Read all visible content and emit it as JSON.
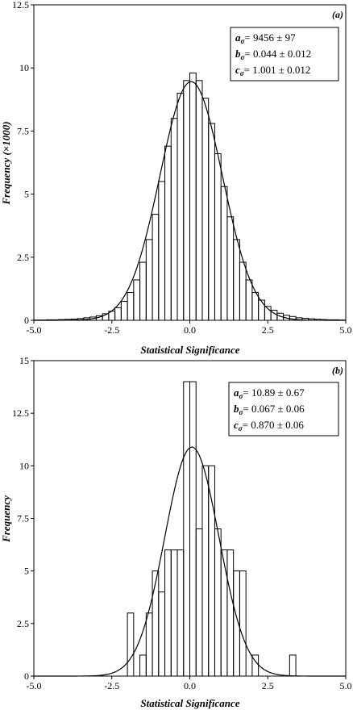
{
  "chart_data": [
    {
      "type": "bar",
      "panel_label": "(a)",
      "xlabel": "Statistical Significance",
      "ylabel": "Frequency (×1000)",
      "xlim": [
        -5.0,
        5.0
      ],
      "ylim": [
        0,
        12.5
      ],
      "xticks": [
        "-5.0",
        "-2.5",
        "0.0",
        "2.5",
        "5.0"
      ],
      "yticks": [
        "0",
        "2.5",
        "5",
        "7.5",
        "10",
        "12.5"
      ],
      "bin_width": 0.2,
      "bin_starts": [
        -5.0,
        -4.8,
        -4.6,
        -4.4,
        -4.2,
        -4.0,
        -3.8,
        -3.6,
        -3.4,
        -3.2,
        -3.0,
        -2.8,
        -2.6,
        -2.4,
        -2.2,
        -2.0,
        -1.8,
        -1.6,
        -1.4,
        -1.2,
        -1.0,
        -0.8,
        -0.6,
        -0.4,
        -0.2,
        0.0,
        0.2,
        0.4,
        0.6,
        0.8,
        1.0,
        1.2,
        1.4,
        1.6,
        1.8,
        2.0,
        2.2,
        2.4,
        2.6,
        2.8,
        3.0,
        3.2,
        3.4,
        3.6,
        3.8,
        4.0,
        4.2,
        4.4,
        4.6,
        4.8
      ],
      "values": [
        0.01,
        0.01,
        0.02,
        0.02,
        0.03,
        0.04,
        0.05,
        0.07,
        0.1,
        0.13,
        0.18,
        0.26,
        0.36,
        0.5,
        0.75,
        1.1,
        1.6,
        2.3,
        3.2,
        4.2,
        5.5,
        6.9,
        8.0,
        9.0,
        9.5,
        9.8,
        9.5,
        8.8,
        7.8,
        6.6,
        5.3,
        4.1,
        3.2,
        2.3,
        1.6,
        1.1,
        0.8,
        0.55,
        0.4,
        0.28,
        0.2,
        0.15,
        0.1,
        0.08,
        0.06,
        0.04,
        0.03,
        0.02,
        0.02,
        0.01
      ],
      "fit": {
        "amplitude": 9.456,
        "mean": 0.044,
        "sigma": 1.001
      },
      "params": [
        {
          "symbol": "a",
          "sub": "σ",
          "value": "= 9456 ± 97"
        },
        {
          "symbol": "b",
          "sub": "σ",
          "value": "= 0.044 ± 0.012"
        },
        {
          "symbol": "c",
          "sub": "σ",
          "value": "= 1.001 ± 0.012"
        }
      ]
    },
    {
      "type": "bar",
      "panel_label": "(b)",
      "xlabel": "Statistical Significance",
      "ylabel": "Frequency",
      "xlim": [
        -5.0,
        5.0
      ],
      "ylim": [
        0,
        15
      ],
      "xticks": [
        "-5.0",
        "-2.5",
        "0.0",
        "2.5",
        "5.0"
      ],
      "yticks": [
        "0",
        "2.5",
        "5",
        "7.5",
        "10",
        "12.5",
        "15"
      ],
      "bin_width": 0.2,
      "bin_starts": [
        -2.0,
        -1.8,
        -1.6,
        -1.4,
        -1.2,
        -1.0,
        -0.8,
        -0.6,
        -0.4,
        -0.2,
        0.0,
        0.2,
        0.4,
        0.6,
        0.8,
        1.0,
        1.2,
        1.4,
        1.6,
        1.8,
        2.0,
        2.2,
        2.4,
        2.6,
        2.8,
        3.0,
        3.2
      ],
      "values": [
        3,
        0,
        1,
        3,
        5,
        4,
        6,
        6,
        6,
        14,
        14,
        7,
        10,
        10,
        7,
        6,
        6,
        5,
        5,
        0,
        1,
        0,
        0,
        0,
        0,
        0,
        1
      ],
      "fit": {
        "amplitude": 10.89,
        "mean": 0.067,
        "sigma": 0.87
      },
      "params": [
        {
          "symbol": "a",
          "sub": "σ",
          "value": "= 10.89 ± 0.67"
        },
        {
          "symbol": "b",
          "sub": "σ",
          "value": "= 0.067 ± 0.06"
        },
        {
          "symbol": "c",
          "sub": "σ",
          "value": "= 0.870 ± 0.06"
        }
      ]
    }
  ]
}
